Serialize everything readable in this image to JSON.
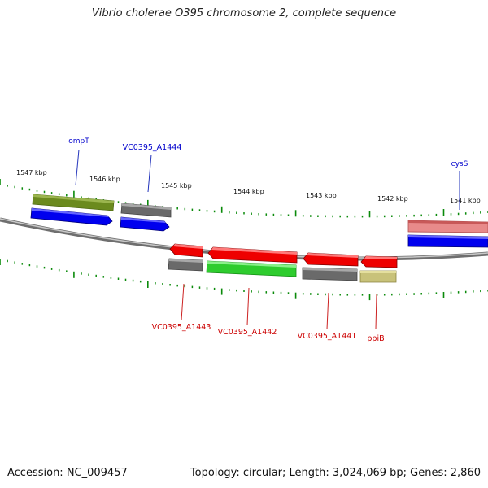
{
  "title": "Vibrio cholerae O395 chromosome 2, complete sequence",
  "footer": {
    "accession": "Accession: NC_009457",
    "summary": "Topology: circular; Length: 3,024,069 bp; Genes: 2,860"
  },
  "ruler_ticks": [
    "1547 kbp",
    "1546 kbp",
    "1545 kbp",
    "1544 kbp",
    "1543 kbp",
    "1542 kbp",
    "1541 kbp"
  ],
  "genes": {
    "forward": [
      {
        "label": "ompT",
        "color": "#0000cc"
      },
      {
        "label": "VC0395_A1444",
        "color": "#0000cc"
      },
      {
        "label": "cysS",
        "color": "#0000cc"
      }
    ],
    "reverse": [
      {
        "label": "VC0395_A1443",
        "color": "#cc0000"
      },
      {
        "label": "VC0395_A1442",
        "color": "#cc0000"
      },
      {
        "label": "VC0395_A1441",
        "color": "#cc0000"
      },
      {
        "label": "ppiB",
        "color": "#cc0000"
      }
    ]
  },
  "colors": {
    "backbone": "#8c8c8c",
    "tick": "#0a8a0a",
    "cds_forward": "#0000ee",
    "cds_reverse": "#ee0000",
    "olive": "#6b8a1e",
    "gray": "#6a6a6a",
    "green": "#2ecc2e",
    "khaki": "#c8c27a",
    "pink": "#e88a8a"
  }
}
